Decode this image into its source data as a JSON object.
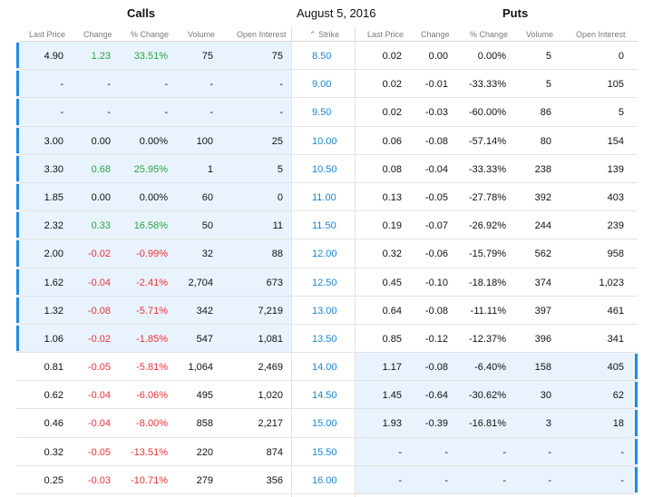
{
  "calls_title": "Calls",
  "expiry_date": "August 5, 2016",
  "puts_title": "Puts",
  "columns": {
    "last_price": "Last Price",
    "change": "Change",
    "pct_change": "% Change",
    "volume": "Volume",
    "open_interest": "Open Interest",
    "strike": "Strike",
    "sort_icon": "up-caret"
  },
  "colors": {
    "itm_bg": "#e9f3fd",
    "bar": "#1f8ae6",
    "up": "#2aa445",
    "down": "#e8333a",
    "strike": "#1a86d0"
  },
  "rows": [
    {
      "strike": "8.50",
      "call_itm": true,
      "put_itm": false,
      "call": {
        "last": "4.90",
        "chg": "1.23",
        "pct": "33.51%",
        "vol": "75",
        "oi": "75",
        "dir": "up"
      },
      "put": {
        "last": "0.02",
        "chg": "0.00",
        "pct": "0.00%",
        "vol": "5",
        "oi": "0"
      }
    },
    {
      "strike": "9.00",
      "call_itm": true,
      "put_itm": false,
      "call": {
        "last": "-",
        "chg": "-",
        "pct": "-",
        "vol": "-",
        "oi": "-",
        "dir": "none"
      },
      "put": {
        "last": "0.02",
        "chg": "-0.01",
        "pct": "-33.33%",
        "vol": "5",
        "oi": "105"
      }
    },
    {
      "strike": "9.50",
      "call_itm": true,
      "put_itm": false,
      "call": {
        "last": "-",
        "chg": "-",
        "pct": "-",
        "vol": "-",
        "oi": "-",
        "dir": "none"
      },
      "put": {
        "last": "0.02",
        "chg": "-0.03",
        "pct": "-60.00%",
        "vol": "86",
        "oi": "5"
      }
    },
    {
      "strike": "10.00",
      "call_itm": true,
      "put_itm": false,
      "call": {
        "last": "3.00",
        "chg": "0.00",
        "pct": "0.00%",
        "vol": "100",
        "oi": "25",
        "dir": "none"
      },
      "put": {
        "last": "0.06",
        "chg": "-0.08",
        "pct": "-57.14%",
        "vol": "80",
        "oi": "154"
      }
    },
    {
      "strike": "10.50",
      "call_itm": true,
      "put_itm": false,
      "call": {
        "last": "3.30",
        "chg": "0.68",
        "pct": "25.95%",
        "vol": "1",
        "oi": "5",
        "dir": "up"
      },
      "put": {
        "last": "0.08",
        "chg": "-0.04",
        "pct": "-33.33%",
        "vol": "238",
        "oi": "139"
      }
    },
    {
      "strike": "11.00",
      "call_itm": true,
      "put_itm": false,
      "call": {
        "last": "1.85",
        "chg": "0.00",
        "pct": "0.00%",
        "vol": "60",
        "oi": "0",
        "dir": "none"
      },
      "put": {
        "last": "0.13",
        "chg": "-0.05",
        "pct": "-27.78%",
        "vol": "392",
        "oi": "403"
      }
    },
    {
      "strike": "11.50",
      "call_itm": true,
      "put_itm": false,
      "call": {
        "last": "2.32",
        "chg": "0.33",
        "pct": "16.58%",
        "vol": "50",
        "oi": "11",
        "dir": "up"
      },
      "put": {
        "last": "0.19",
        "chg": "-0.07",
        "pct": "-26.92%",
        "vol": "244",
        "oi": "239"
      }
    },
    {
      "strike": "12.00",
      "call_itm": true,
      "put_itm": false,
      "call": {
        "last": "2.00",
        "chg": "-0.02",
        "pct": "-0.99%",
        "vol": "32",
        "oi": "88",
        "dir": "down"
      },
      "put": {
        "last": "0.32",
        "chg": "-0.06",
        "pct": "-15.79%",
        "vol": "562",
        "oi": "958"
      }
    },
    {
      "strike": "12.50",
      "call_itm": true,
      "put_itm": false,
      "call": {
        "last": "1.62",
        "chg": "-0.04",
        "pct": "-2.41%",
        "vol": "2,704",
        "oi": "673",
        "dir": "down"
      },
      "put": {
        "last": "0.45",
        "chg": "-0.10",
        "pct": "-18.18%",
        "vol": "374",
        "oi": "1,023"
      }
    },
    {
      "strike": "13.00",
      "call_itm": true,
      "put_itm": false,
      "call": {
        "last": "1.32",
        "chg": "-0.08",
        "pct": "-5.71%",
        "vol": "342",
        "oi": "7,219",
        "dir": "down"
      },
      "put": {
        "last": "0.64",
        "chg": "-0.08",
        "pct": "-11.11%",
        "vol": "397",
        "oi": "461"
      }
    },
    {
      "strike": "13.50",
      "call_itm": true,
      "put_itm": false,
      "call": {
        "last": "1.06",
        "chg": "-0.02",
        "pct": "-1.85%",
        "vol": "547",
        "oi": "1,081",
        "dir": "down"
      },
      "put": {
        "last": "0.85",
        "chg": "-0.12",
        "pct": "-12.37%",
        "vol": "396",
        "oi": "341"
      }
    },
    {
      "strike": "14.00",
      "call_itm": false,
      "put_itm": true,
      "call": {
        "last": "0.81",
        "chg": "-0.05",
        "pct": "-5.81%",
        "vol": "1,064",
        "oi": "2,469",
        "dir": "down"
      },
      "put": {
        "last": "1.17",
        "chg": "-0.08",
        "pct": "-6.40%",
        "vol": "158",
        "oi": "405"
      }
    },
    {
      "strike": "14.50",
      "call_itm": false,
      "put_itm": true,
      "call": {
        "last": "0.62",
        "chg": "-0.04",
        "pct": "-6.06%",
        "vol": "495",
        "oi": "1,020",
        "dir": "down"
      },
      "put": {
        "last": "1.45",
        "chg": "-0.64",
        "pct": "-30.62%",
        "vol": "30",
        "oi": "62"
      }
    },
    {
      "strike": "15.00",
      "call_itm": false,
      "put_itm": true,
      "call": {
        "last": "0.46",
        "chg": "-0.04",
        "pct": "-8.00%",
        "vol": "858",
        "oi": "2,217",
        "dir": "down"
      },
      "put": {
        "last": "1.93",
        "chg": "-0.39",
        "pct": "-16.81%",
        "vol": "3",
        "oi": "18"
      }
    },
    {
      "strike": "15.50",
      "call_itm": false,
      "put_itm": true,
      "call": {
        "last": "0.32",
        "chg": "-0.05",
        "pct": "-13.51%",
        "vol": "220",
        "oi": "874",
        "dir": "down"
      },
      "put": {
        "last": "-",
        "chg": "-",
        "pct": "-",
        "vol": "-",
        "oi": "-"
      }
    },
    {
      "strike": "16.00",
      "call_itm": false,
      "put_itm": true,
      "call": {
        "last": "0.25",
        "chg": "-0.03",
        "pct": "-10.71%",
        "vol": "279",
        "oi": "356",
        "dir": "down"
      },
      "put": {
        "last": "-",
        "chg": "-",
        "pct": "-",
        "vol": "-",
        "oi": "-"
      }
    }
  ]
}
